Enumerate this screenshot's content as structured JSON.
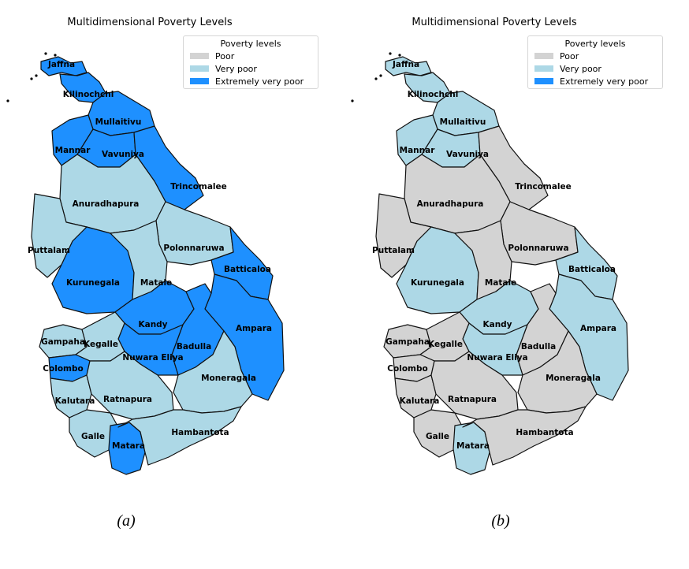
{
  "colors": {
    "poor": "#d3d3d3",
    "very_poor": "#add8e6",
    "extremely_very_poor": "#1e90ff",
    "border": "#111111"
  },
  "legend": {
    "title": "Poverty levels",
    "items": [
      {
        "key": "poor",
        "label": "Poor"
      },
      {
        "key": "very_poor",
        "label": "Very poor"
      },
      {
        "key": "extremely_very_poor",
        "label": "Extremely very poor"
      }
    ]
  },
  "panels": [
    {
      "title": "Multidimensional Poverty Levels",
      "caption": "(a)",
      "levels": {
        "Jaffna": "extremely_very_poor",
        "Kilinochchi": "extremely_very_poor",
        "Mullaitivu": "extremely_very_poor",
        "Mannar": "extremely_very_poor",
        "Vavuniya": "extremely_very_poor",
        "Trincomalee": "extremely_very_poor",
        "Anuradhapura": "very_poor",
        "Puttalam": "very_poor",
        "Polonnaruwa": "very_poor",
        "Kurunegala": "extremely_very_poor",
        "Matale": "very_poor",
        "Batticaloa": "extremely_very_poor",
        "Ampara": "extremely_very_poor",
        "Kandy": "extremely_very_poor",
        "Badulla": "extremely_very_poor",
        "Nuwara Eliya": "extremely_very_poor",
        "Gampaha": "very_poor",
        "Kegalle": "very_poor",
        "Colombo": "extremely_very_poor",
        "Moneragala": "very_poor",
        "Kalutara": "very_poor",
        "Ratnapura": "very_poor",
        "Galle": "very_poor",
        "Matara": "extremely_very_poor",
        "Hambantota": "very_poor"
      }
    },
    {
      "title": "Multidimensional Poverty Levels",
      "caption": "(b)",
      "levels": {
        "Jaffna": "very_poor",
        "Kilinochchi": "very_poor",
        "Mullaitivu": "very_poor",
        "Mannar": "very_poor",
        "Vavuniya": "very_poor",
        "Trincomalee": "poor",
        "Anuradhapura": "poor",
        "Puttalam": "poor",
        "Polonnaruwa": "poor",
        "Kurunegala": "very_poor",
        "Matale": "poor",
        "Batticaloa": "very_poor",
        "Ampara": "very_poor",
        "Kandy": "very_poor",
        "Badulla": "poor",
        "Nuwara Eliya": "very_poor",
        "Gampaha": "poor",
        "Kegalle": "poor",
        "Colombo": "poor",
        "Moneragala": "poor",
        "Kalutara": "poor",
        "Ratnapura": "poor",
        "Galle": "poor",
        "Matara": "very_poor",
        "Hambantota": "poor"
      }
    }
  ]
}
